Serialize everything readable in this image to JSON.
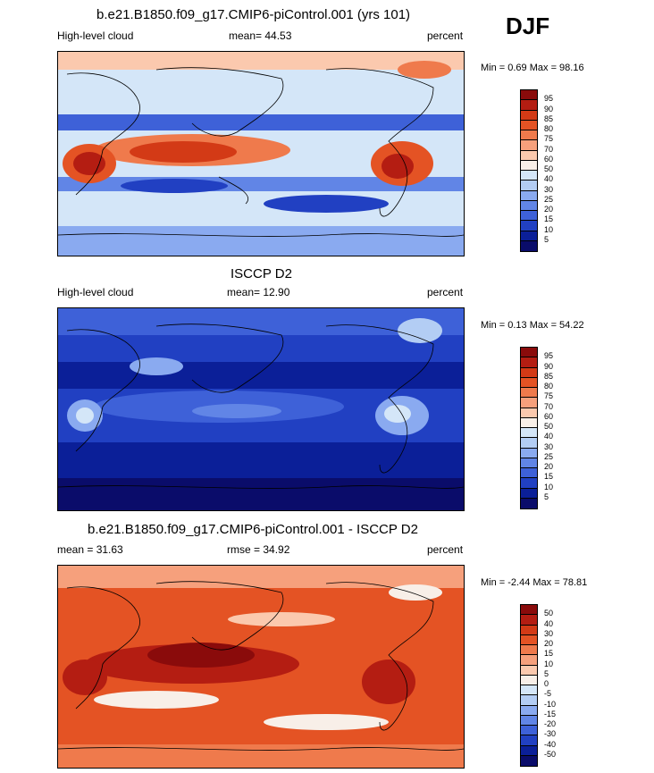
{
  "season": "DJF",
  "panels": [
    {
      "title": "b.e21.B1850.f09_g17.CMIP6-piControl.001 (yrs 101)",
      "left": "High-level cloud",
      "center": "mean=  44.53",
      "right": "percent",
      "minmax": "Min =   0.69 Max =  98.16",
      "scale": "full",
      "palette_bias": "mixed",
      "levels": [
        "95",
        "90",
        "85",
        "80",
        "75",
        "70",
        "60",
        "50",
        "40",
        "30",
        "25",
        "20",
        "15",
        "10",
        "5"
      ]
    },
    {
      "title": "ISCCP D2",
      "left": "High-level cloud",
      "center": "mean=  12.90",
      "right": "percent",
      "minmax": "Min =   0.13 Max =  54.22",
      "scale": "full",
      "palette_bias": "blue",
      "levels": [
        "95",
        "90",
        "85",
        "80",
        "75",
        "70",
        "60",
        "50",
        "40",
        "30",
        "25",
        "20",
        "15",
        "10",
        "5"
      ]
    },
    {
      "title": "b.e21.B1850.f09_g17.CMIP6-piControl.001 - ISCCP D2",
      "left": "mean =  31.63",
      "center": "rmse =  34.92",
      "right": "percent",
      "minmax": "Min =  -2.44 Max =  78.81",
      "scale": "diff",
      "palette_bias": "red",
      "levels": [
        "50",
        "40",
        "30",
        "20",
        "15",
        "10",
        "5",
        "0",
        "-5",
        "-10",
        "-15",
        "-20",
        "-30",
        "-40",
        "-50"
      ]
    }
  ],
  "colors": {
    "palette": [
      "#8a0b0b",
      "#b41d12",
      "#d33a16",
      "#e45324",
      "#ef7a4c",
      "#f6a07c",
      "#fbc9ae",
      "#f8efe8",
      "#d4e6f8",
      "#b3cdf4",
      "#8aaaf0",
      "#6185e6",
      "#3e61d8",
      "#2140c2",
      "#0b1f98",
      "#0a0c6a"
    ],
    "land_line": "#000000",
    "background": "#ffffff"
  }
}
